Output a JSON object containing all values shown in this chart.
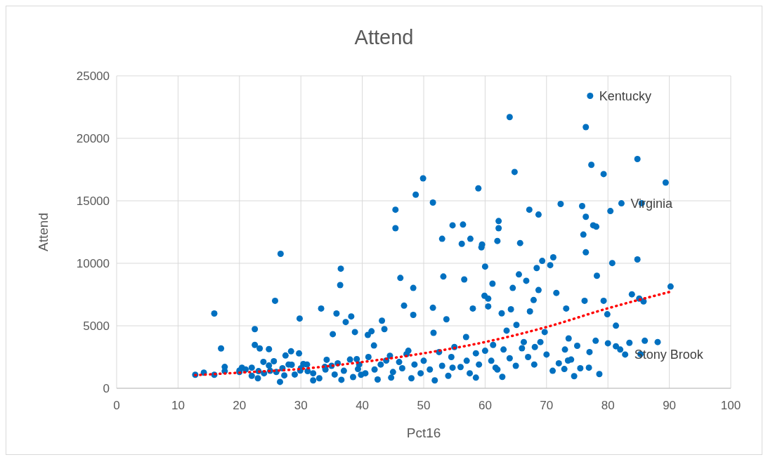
{
  "chart_data": {
    "type": "scatter",
    "title": "Attend",
    "xlabel": "Pct16",
    "ylabel": "Attend",
    "xlim": [
      0,
      100
    ],
    "xticks": [
      0,
      10,
      20,
      30,
      40,
      50,
      60,
      70,
      80,
      90,
      100
    ],
    "ylim": [
      0,
      25000
    ],
    "yticks": [
      0,
      5000,
      10000,
      15000,
      20000,
      25000
    ],
    "grid": true,
    "marker": "circle",
    "series": [
      {
        "color": "#0070c0",
        "x": [
          12.8,
          14.2,
          15.9,
          15.9,
          17,
          17.6,
          17.6,
          20,
          20.4,
          22,
          22.5,
          22.5,
          23.1,
          23.3,
          23.9,
          24.8,
          24.8,
          25.6,
          25.8,
          26.7,
          26.6,
          27.3,
          27.5,
          28.4,
          28.5,
          29.8,
          29.7,
          29.9,
          30.4,
          31.1,
          32,
          33.3,
          33.9,
          34.2,
          35.2,
          35.8,
          36.4,
          36.5,
          36.6,
          37.3,
          38.2,
          38.8,
          39.1,
          39.3,
          39.8,
          40.9,
          41.5,
          41.9,
          43.2,
          43.6,
          43.9,
          44.7,
          45.4,
          45.4,
          46.2,
          46.8,
          47.2,
          48,
          48.7,
          48.3,
          48.3,
          49.9,
          51.5,
          51.5,
          51.6,
          51.8,
          53,
          53.2,
          53.7,
          54.7,
          54.7,
          56.2,
          56.4,
          56.6,
          56.9,
          57.6,
          58,
          58.5,
          58.9,
          59.4,
          59.5,
          59.9,
          60,
          60.5,
          60.5,
          61.2,
          61.3,
          61.7,
          62,
          62.2,
          62.2,
          62.7,
          62.8,
          63.5,
          64,
          64.2,
          64.5,
          64.8,
          65.1,
          65.5,
          65.7,
          66.3,
          66.7,
          67.2,
          67.3,
          67.9,
          68.1,
          68.4,
          68.7,
          68.7,
          69.3,
          69.7,
          70.6,
          71.1,
          71.6,
          72.3,
          72.9,
          73.2,
          73.5,
          73.6,
          74.5,
          75.5,
          75.8,
          76,
          76.2,
          76.4,
          76.4,
          76.4,
          76.9,
          77.3,
          77.6,
          78.1,
          78.2,
          78.6,
          79.3,
          79.3,
          79.9,
          80.4,
          80.7,
          81.3,
          81.3,
          83.5,
          83.9,
          84.8,
          84.8,
          85.1,
          85.3,
          85.5,
          85.8,
          88.1,
          89.4,
          90.2,
          77.1,
          82.2,
          82.8,
          20,
          21,
          22,
          23,
          24,
          25,
          26,
          27,
          28,
          29,
          30,
          31,
          32,
          33,
          34,
          35,
          35.5,
          36,
          37,
          38,
          38.5,
          39.5,
          40.5,
          41,
          42,
          42.5,
          43,
          44.5,
          45,
          46,
          46.5,
          47.5,
          48.5,
          49.5,
          50,
          51,
          52.5,
          53,
          54,
          54.5,
          55,
          56,
          57,
          57.5,
          58.5,
          59,
          60,
          61,
          62,
          63,
          64,
          65,
          66,
          67,
          68,
          69,
          70,
          71,
          72,
          73,
          74,
          75,
          77,
          78,
          80,
          82,
          86
        ],
        "values": [
          1080,
          1250,
          5980,
          1080,
          3190,
          1710,
          1370,
          1420,
          1650,
          1650,
          4730,
          3470,
          1370,
          3190,
          2110,
          3130,
          1820,
          2160,
          7000,
          10760,
          510,
          1030,
          2620,
          2960,
          1880,
          5580,
          2790,
          1420,
          1940,
          1370,
          630,
          6380,
          1710,
          2280,
          4330,
          5980,
          8260,
          9570,
          680,
          5300,
          5750,
          4500,
          2330,
          1540,
          1080,
          4270,
          4560,
          3420,
          5410,
          4730,
          2220,
          850,
          14290,
          12810,
          8830,
          6610,
          2730,
          800,
          15490,
          8030,
          5870,
          16800,
          14860,
          6440,
          4440,
          630,
          11960,
          8940,
          5520,
          13040,
          1650,
          11560,
          13100,
          8710,
          4100,
          11960,
          6380,
          850,
          16000,
          11280,
          11500,
          7400,
          9740,
          6550,
          7180,
          8370,
          3470,
          1650,
          11790,
          13380,
          12810,
          6000,
          910,
          4610,
          21700,
          6320,
          8030,
          17310,
          5070,
          9110,
          11620,
          3700,
          8600,
          14290,
          6150,
          7060,
          3300,
          9620,
          13900,
          7860,
          10190,
          4500,
          9850,
          10480,
          7630,
          14750,
          1540,
          6380,
          2220,
          3990,
          970,
          1600,
          14580,
          12300,
          7000,
          20900,
          13720,
          10880,
          1650,
          17880,
          13040,
          12930,
          9000,
          1140,
          17140,
          7000,
          5920,
          14180,
          10020,
          5010,
          3360,
          3640,
          7520,
          18340,
          10310,
          7180,
          2730,
          14810,
          6950,
          3700,
          16460,
          8140,
          23400,
          14800,
          2700,
          1300,
          1500,
          1000,
          800,
          1200,
          1400,
          1300,
          1600,
          1900,
          1100,
          1600,
          1900,
          1200,
          800,
          1500,
          1800,
          1100,
          2000,
          1400,
          2300,
          900,
          1900,
          1200,
          2500,
          1500,
          700,
          1900,
          2600,
          1300,
          2100,
          1600,
          3000,
          1900,
          1200,
          2200,
          1500,
          2900,
          1800,
          1000,
          2500,
          3300,
          1700,
          2200,
          1200,
          2800,
          1900,
          3000,
          2200,
          1500,
          3100,
          2400,
          1800,
          3200,
          2500,
          1900,
          3700,
          2700,
          1400,
          2000,
          3100,
          2300,
          3400,
          2900,
          3800,
          3600,
          3100,
          3800
        ]
      },
      {
        "type": "line",
        "color": "#ff0000",
        "line_style": "dotted",
        "marker": "none",
        "x": [
          12.8,
          20,
          30,
          40,
          50,
          60,
          70,
          80,
          90
        ],
        "values": [
          1050,
          1250,
          1550,
          2100,
          2800,
          3700,
          4900,
          6400,
          7700
        ]
      }
    ],
    "annotations": [
      {
        "text": "Kentucky",
        "x": 77.1,
        "y": 23400
      },
      {
        "text": "Virginia",
        "x": 82.2,
        "y": 14800
      },
      {
        "text": "Stony Brook",
        "x": 82.8,
        "y": 2700
      }
    ]
  }
}
